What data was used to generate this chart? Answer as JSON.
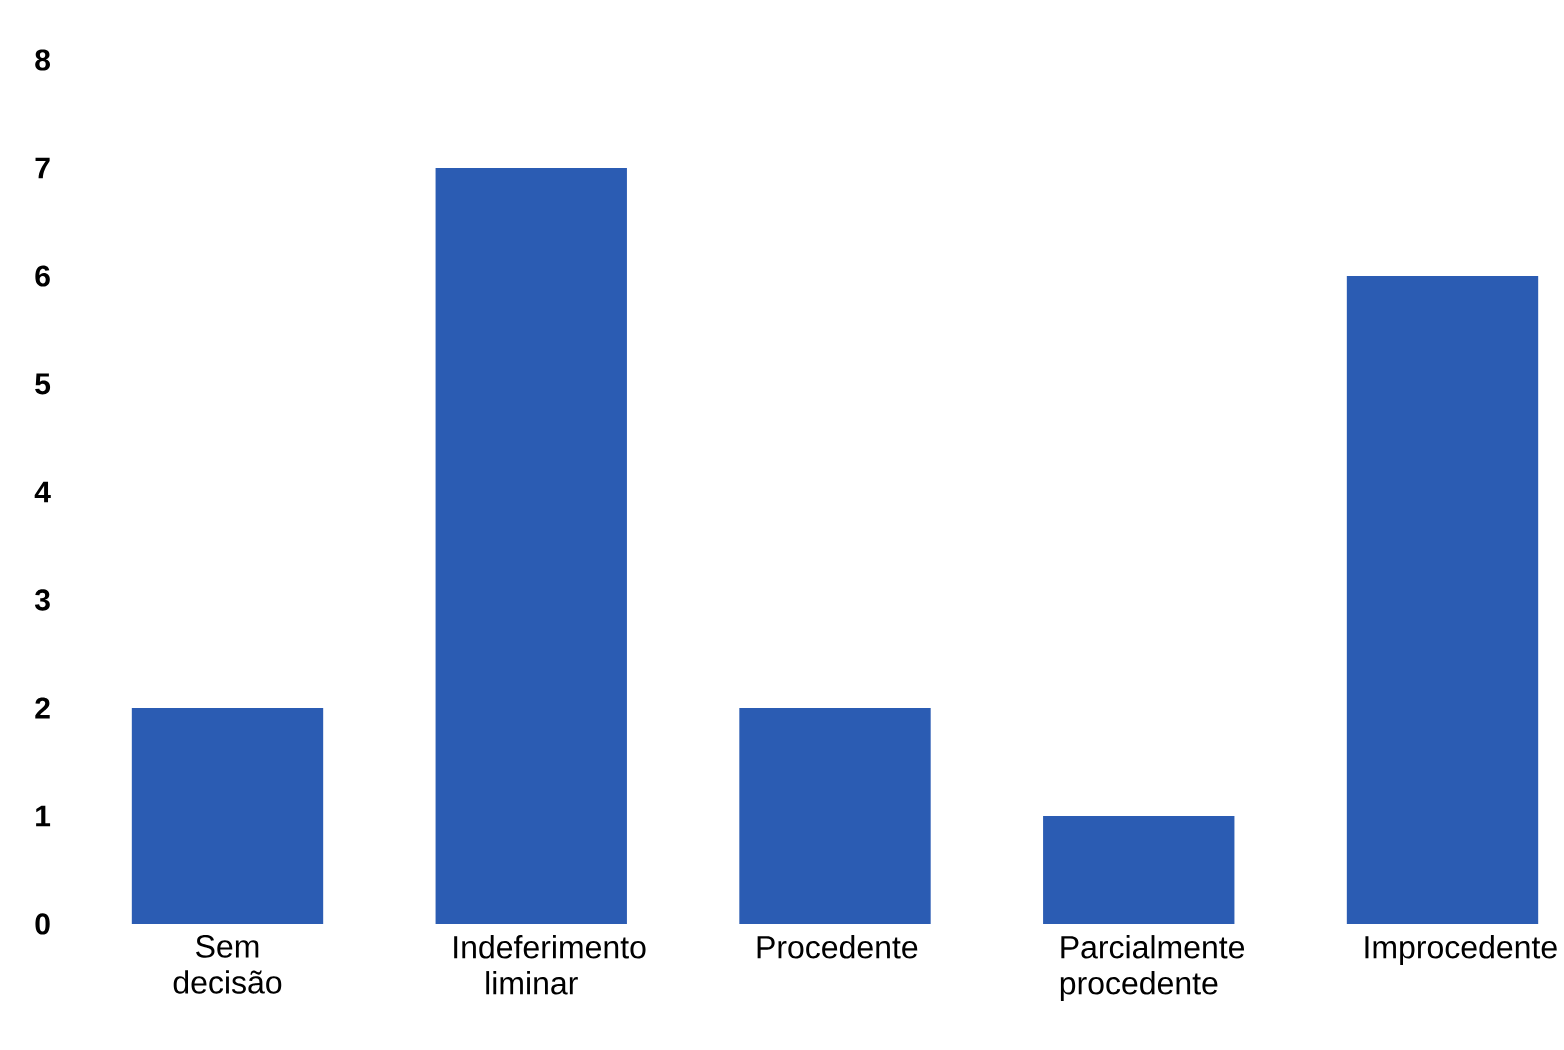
{
  "chart_data": {
    "type": "bar",
    "categories": [
      "Sem decisão",
      "Indeferimento liminar",
      "Procedente",
      "Parcialmente procedente",
      "Improcedente"
    ],
    "values": [
      2,
      7,
      2,
      1,
      6
    ],
    "color": "#2b5cb3",
    "ylim": [
      0,
      8
    ],
    "yticks": [
      0,
      1,
      2,
      3,
      4,
      5,
      6,
      7,
      8
    ]
  }
}
